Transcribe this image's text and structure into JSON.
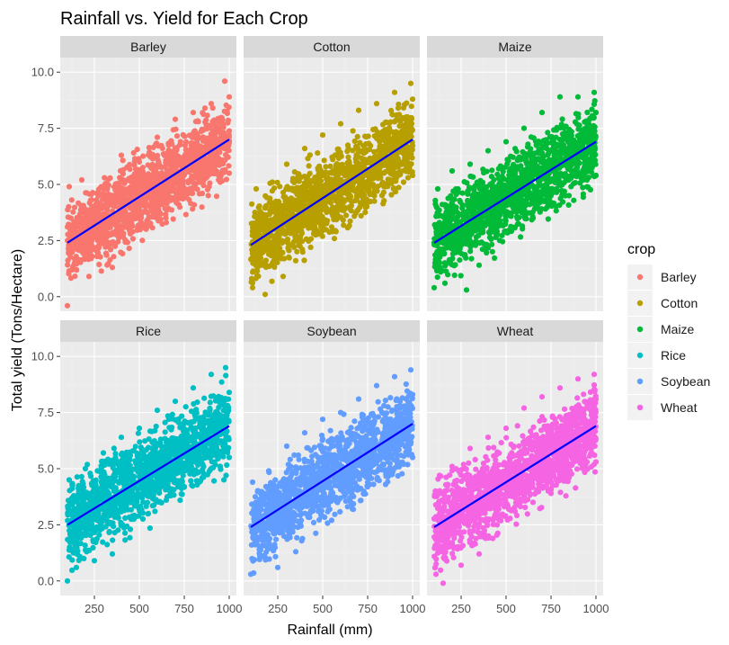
{
  "chart_data": {
    "type": "scatter",
    "title": "Rainfall vs. Yield for Each Crop",
    "xlabel": "Rainfall (mm)",
    "ylabel": "Total yield (Tons/Hectare)",
    "xlim": [
      60,
      1040
    ],
    "ylim": [
      -0.65,
      10.65
    ],
    "x_ticks": [
      250,
      500,
      750,
      1000
    ],
    "y_ticks": [
      0.0,
      2.5,
      5.0,
      7.5,
      10.0
    ],
    "x_tick_labels": [
      "250",
      "500",
      "750",
      "1000"
    ],
    "y_tick_labels": [
      "0.0",
      "2.5",
      "5.0",
      "7.5",
      "10.0"
    ],
    "grid": true,
    "facet_layout": "2 rows x 3 columns",
    "legend": {
      "title": "crop",
      "position": "right"
    },
    "trend_line_color": "#0000ff",
    "panel_background": "#ebebeb",
    "strip_background": "#d9d9d9",
    "series": [
      {
        "name": "Barley",
        "color": "#f8766d",
        "fit": {
          "x": [
            100,
            1000
          ],
          "y": [
            2.4,
            7.0
          ]
        },
        "points": [
          [
            100,
            -0.4
          ],
          [
            110,
            4.9
          ],
          [
            150,
            1.2
          ],
          [
            180,
            5.2
          ],
          [
            220,
            0.9
          ],
          [
            300,
            4.9
          ],
          [
            350,
            1.3
          ],
          [
            400,
            6.3
          ],
          [
            450,
            2.8
          ],
          [
            500,
            6.0
          ],
          [
            550,
            3.3
          ],
          [
            600,
            7.1
          ],
          [
            650,
            3.3
          ],
          [
            700,
            7.9
          ],
          [
            750,
            4.8
          ],
          [
            800,
            8.2
          ],
          [
            850,
            4.6
          ],
          [
            900,
            8.6
          ],
          [
            950,
            5.1
          ],
          [
            975,
            9.6
          ],
          [
            1000,
            5.5
          ],
          [
            1000,
            8.9
          ]
        ]
      },
      {
        "name": "Cotton",
        "color": "#b79f00",
        "fit": {
          "x": [
            100,
            1000
          ],
          "y": [
            2.3,
            7.0
          ]
        },
        "points": [
          [
            110,
            0.4
          ],
          [
            130,
            4.8
          ],
          [
            180,
            0.1
          ],
          [
            220,
            5.1
          ],
          [
            280,
            0.9
          ],
          [
            300,
            5.9
          ],
          [
            350,
            1.6
          ],
          [
            400,
            6.6
          ],
          [
            450,
            2.8
          ],
          [
            500,
            7.2
          ],
          [
            550,
            3.1
          ],
          [
            600,
            7.7
          ],
          [
            650,
            4.0
          ],
          [
            700,
            8.3
          ],
          [
            750,
            4.2
          ],
          [
            800,
            8.6
          ],
          [
            850,
            4.9
          ],
          [
            900,
            9.1
          ],
          [
            950,
            5.1
          ],
          [
            990,
            9.5
          ],
          [
            1000,
            5.4
          ],
          [
            1000,
            8.8
          ]
        ]
      },
      {
        "name": "Maize",
        "color": "#00ba38",
        "fit": {
          "x": [
            100,
            1000
          ],
          "y": [
            2.4,
            6.9
          ]
        },
        "points": [
          [
            100,
            0.4
          ],
          [
            120,
            4.8
          ],
          [
            160,
            0.6
          ],
          [
            200,
            5.6
          ],
          [
            280,
            0.3
          ],
          [
            300,
            5.9
          ],
          [
            350,
            1.4
          ],
          [
            400,
            6.5
          ],
          [
            450,
            2.9
          ],
          [
            500,
            6.9
          ],
          [
            550,
            3.1
          ],
          [
            600,
            7.5
          ],
          [
            650,
            3.5
          ],
          [
            700,
            8.2
          ],
          [
            750,
            4.2
          ],
          [
            800,
            8.9
          ],
          [
            850,
            4.5
          ],
          [
            900,
            8.9
          ],
          [
            950,
            5.2
          ],
          [
            990,
            9.1
          ],
          [
            1000,
            5.4
          ],
          [
            1000,
            8.2
          ]
        ]
      },
      {
        "name": "Rice",
        "color": "#00bfc4",
        "fit": {
          "x": [
            100,
            1000
          ],
          "y": [
            2.5,
            6.9
          ]
        },
        "points": [
          [
            100,
            0.0
          ],
          [
            110,
            4.5
          ],
          [
            150,
            0.6
          ],
          [
            200,
            5.0
          ],
          [
            250,
            0.9
          ],
          [
            300,
            5.7
          ],
          [
            350,
            1.2
          ],
          [
            400,
            6.4
          ],
          [
            450,
            2.3
          ],
          [
            500,
            6.8
          ],
          [
            550,
            3.0
          ],
          [
            600,
            7.6
          ],
          [
            650,
            3.6
          ],
          [
            700,
            8.0
          ],
          [
            750,
            4.2
          ],
          [
            800,
            8.6
          ],
          [
            850,
            4.6
          ],
          [
            900,
            9.2
          ],
          [
            950,
            5.1
          ],
          [
            980,
            9.5
          ],
          [
            1000,
            5.5
          ],
          [
            1000,
            8.4
          ]
        ]
      },
      {
        "name": "Soybean",
        "color": "#619cff",
        "fit": {
          "x": [
            100,
            1000
          ],
          "y": [
            2.4,
            7.0
          ]
        },
        "points": [
          [
            100,
            0.3
          ],
          [
            110,
            4.4
          ],
          [
            150,
            1.1
          ],
          [
            200,
            4.9
          ],
          [
            250,
            0.6
          ],
          [
            300,
            6.0
          ],
          [
            350,
            1.3
          ],
          [
            400,
            6.6
          ],
          [
            450,
            2.6
          ],
          [
            500,
            7.2
          ],
          [
            550,
            2.7
          ],
          [
            600,
            7.5
          ],
          [
            650,
            3.7
          ],
          [
            700,
            8.1
          ],
          [
            750,
            4.4
          ],
          [
            800,
            8.7
          ],
          [
            850,
            4.3
          ],
          [
            900,
            9.1
          ],
          [
            950,
            5.2
          ],
          [
            990,
            9.4
          ],
          [
            1000,
            5.5
          ],
          [
            1000,
            8.3
          ]
        ]
      },
      {
        "name": "Wheat",
        "color": "#f564e3",
        "fit": {
          "x": [
            100,
            1000
          ],
          "y": [
            2.4,
            6.9
          ]
        },
        "points": [
          [
            110,
            0.3
          ],
          [
            130,
            4.7
          ],
          [
            150,
            -0.1
          ],
          [
            200,
            5.1
          ],
          [
            250,
            0.7
          ],
          [
            300,
            5.9
          ],
          [
            350,
            1.2
          ],
          [
            400,
            6.4
          ],
          [
            450,
            2.5
          ],
          [
            500,
            6.8
          ],
          [
            550,
            3.1
          ],
          [
            600,
            7.7
          ],
          [
            650,
            3.5
          ],
          [
            700,
            8.2
          ],
          [
            750,
            3.9
          ],
          [
            800,
            8.6
          ],
          [
            850,
            4.6
          ],
          [
            900,
            9.0
          ],
          [
            950,
            5.3
          ],
          [
            990,
            9.2
          ],
          [
            1000,
            5.3
          ],
          [
            1000,
            8.1
          ]
        ]
      }
    ]
  }
}
